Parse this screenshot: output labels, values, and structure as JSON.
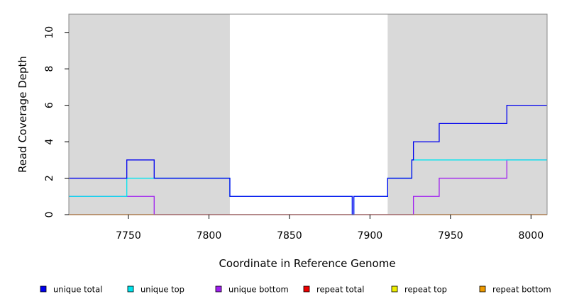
{
  "chart_data": {
    "type": "line",
    "xlabel": "Coordinate in Reference Genome",
    "ylabel": "Read Coverage Depth",
    "xlim": [
      7713,
      8010
    ],
    "ylim": [
      0,
      11
    ],
    "x_ticks": [
      7750,
      7800,
      7850,
      7900,
      7950,
      8000
    ],
    "y_ticks": [
      0,
      2,
      4,
      6,
      8,
      10
    ],
    "shaded_regions": [
      [
        7713,
        7813
      ],
      [
        7911,
        8010
      ]
    ],
    "shade_color": "#d9d9d9",
    "grid": false,
    "legend_position": "bottom",
    "series": [
      {
        "name": "unique total",
        "color": "#0000ee",
        "steps": [
          [
            7713,
            2
          ],
          [
            7749,
            3
          ],
          [
            7766,
            2
          ],
          [
            7813,
            1
          ],
          [
            7889,
            0
          ],
          [
            7890,
            1
          ],
          [
            7911,
            2
          ],
          [
            7926,
            3
          ],
          [
            7927,
            4
          ],
          [
            7943,
            5
          ],
          [
            7985,
            6
          ],
          [
            8010,
            6
          ]
        ]
      },
      {
        "name": "unique top",
        "color": "#00e5ee",
        "steps": [
          [
            7713,
            1
          ],
          [
            7749,
            2
          ],
          [
            7766,
            2
          ],
          [
            7813,
            1
          ],
          [
            7889,
            0
          ],
          [
            7890,
            1
          ],
          [
            7911,
            2
          ],
          [
            7926,
            3
          ],
          [
            8010,
            3
          ]
        ]
      },
      {
        "name": "unique bottom",
        "color": "#a020f0",
        "steps": [
          [
            7713,
            1
          ],
          [
            7766,
            0
          ],
          [
            7927,
            1
          ],
          [
            7943,
            2
          ],
          [
            7985,
            3
          ],
          [
            8010,
            3
          ]
        ]
      },
      {
        "name": "repeat total",
        "color": "#ee0000",
        "steps": [
          [
            7713,
            0
          ],
          [
            8010,
            0
          ]
        ]
      },
      {
        "name": "repeat top",
        "color": "#eeee00",
        "steps": [
          [
            7713,
            0
          ],
          [
            8010,
            0
          ]
        ]
      },
      {
        "name": "repeat bottom",
        "color": "#ee9a00",
        "steps": [
          [
            7713,
            0
          ],
          [
            8010,
            0
          ]
        ]
      }
    ]
  }
}
